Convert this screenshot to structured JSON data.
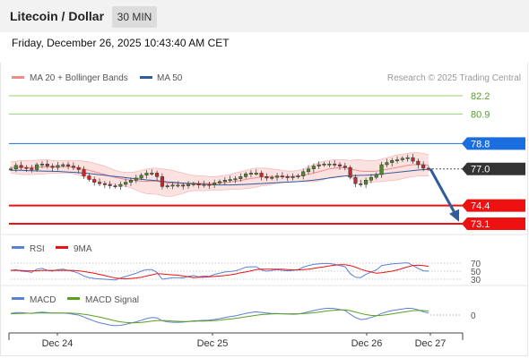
{
  "header": {
    "title": "Litecoin / Dollar",
    "timeframe": "30 MIN"
  },
  "datetime": "Friday, December 26, 2025 10:43:40 AM CET",
  "colors": {
    "bollinger": "#f28b8b",
    "ma50": "#2f5d9a",
    "resistance_green": "#9acd73",
    "pivot_blue": "#1a6ee0",
    "support_red": "#e11",
    "current": "#333333",
    "rsi": "#5b7fd6",
    "rsi_ma": "#e11",
    "macd": "#5b7fd6",
    "macd_signal": "#5aa01d",
    "arrow": "#2f5d9a"
  },
  "chart_data": [
    {
      "type": "line",
      "panel": "price",
      "legend": [
        "MA 20 + Bollinger Bands",
        "MA 50"
      ],
      "watermark": "Research © 2025 Trading Central",
      "ylim": [
        72.6,
        82.9
      ],
      "levels": [
        {
          "value": 82.2,
          "label": "82.2",
          "kind": "resistance"
        },
        {
          "value": 80.9,
          "label": "80.9",
          "kind": "resistance"
        },
        {
          "value": 78.8,
          "label": "78.8",
          "kind": "pivot"
        },
        {
          "value": 77.0,
          "label": "77.0",
          "kind": "current"
        },
        {
          "value": 74.4,
          "label": "74.4",
          "kind": "support"
        },
        {
          "value": 73.1,
          "label": "73.1",
          "kind": "support"
        }
      ],
      "x_ticks": [
        "Dec 24",
        "Dec 25",
        "Dec 26",
        "Dec 27"
      ],
      "close": [
        77.0,
        77.25,
        77.1,
        77.05,
        76.95,
        77.3,
        77.35,
        77.2,
        77.1,
        77.25,
        77.3,
        77.2,
        77.1,
        76.95,
        76.5,
        76.25,
        76.05,
        75.95,
        75.9,
        75.8,
        75.75,
        75.9,
        76.05,
        76.2,
        76.35,
        76.55,
        76.7,
        76.7,
        76.45,
        75.75,
        75.8,
        75.85,
        75.85,
        75.8,
        75.9,
        75.95,
        75.85,
        75.9,
        75.85,
        76.0,
        76.1,
        76.2,
        76.25,
        76.3,
        76.45,
        76.65,
        76.7,
        76.7,
        76.45,
        76.35,
        76.4,
        76.5,
        76.45,
        76.4,
        76.45,
        76.5,
        76.8,
        77.0,
        77.2,
        77.3,
        77.35,
        77.35,
        77.3,
        77.2,
        77.1,
        76.4,
        75.95,
        75.9,
        76.2,
        76.4,
        76.6,
        77.3,
        77.45,
        77.6,
        77.65,
        77.75,
        77.8,
        77.55,
        77.3,
        77.05,
        77.0
      ],
      "mid": [
        77.1,
        77.1,
        77.1,
        77.1,
        77.1,
        77.12,
        77.14,
        77.15,
        77.15,
        77.15,
        77.16,
        77.15,
        77.13,
        77.08,
        77.0,
        76.9,
        76.8,
        76.7,
        76.6,
        76.5,
        76.4,
        76.32,
        76.25,
        76.2,
        76.15,
        76.12,
        76.12,
        76.13,
        76.12,
        76.05,
        76.0,
        75.98,
        75.98,
        75.98,
        76.0,
        76.0,
        75.98,
        75.97,
        75.97,
        75.98,
        76.0,
        76.03,
        76.07,
        76.12,
        76.18,
        76.25,
        76.32,
        76.38,
        76.42,
        76.44,
        76.45,
        76.46,
        76.46,
        76.46,
        76.47,
        76.5,
        76.55,
        76.62,
        76.7,
        76.8,
        76.9,
        77.0,
        77.05,
        77.08,
        77.08,
        77.0,
        76.92,
        76.85,
        76.82,
        76.82,
        76.84,
        76.9,
        76.97,
        77.04,
        77.11,
        77.18,
        77.25,
        77.3,
        77.32,
        77.3,
        77.25
      ],
      "upper": [
        77.5,
        77.55,
        77.6,
        77.6,
        77.6,
        77.62,
        77.65,
        77.65,
        77.6,
        77.6,
        77.6,
        77.6,
        77.6,
        77.6,
        77.55,
        77.5,
        77.4,
        77.3,
        77.2,
        77.05,
        76.9,
        76.8,
        76.75,
        76.75,
        76.8,
        76.9,
        77.0,
        77.05,
        77.05,
        77.0,
        76.95,
        76.9,
        76.8,
        76.7,
        76.6,
        76.55,
        76.5,
        76.5,
        76.45,
        76.45,
        76.5,
        76.55,
        76.6,
        76.7,
        76.8,
        76.9,
        77.0,
        77.05,
        77.05,
        77.05,
        77.0,
        76.95,
        76.9,
        76.85,
        76.85,
        76.9,
        77.0,
        77.15,
        77.3,
        77.45,
        77.55,
        77.6,
        77.65,
        77.65,
        77.65,
        77.6,
        77.65,
        77.65,
        77.6,
        77.6,
        77.6,
        77.7,
        77.8,
        77.9,
        78.0,
        78.05,
        78.1,
        78.15,
        78.15,
        78.1,
        78.0
      ],
      "lower": [
        76.7,
        76.65,
        76.6,
        76.6,
        76.6,
        76.62,
        76.63,
        76.65,
        76.7,
        76.7,
        76.72,
        76.7,
        76.66,
        76.56,
        76.45,
        76.3,
        76.2,
        76.1,
        76.0,
        75.95,
        75.9,
        75.84,
        75.75,
        75.65,
        75.5,
        75.34,
        75.24,
        75.21,
        75.19,
        75.1,
        75.05,
        75.06,
        75.16,
        75.26,
        75.4,
        75.45,
        75.46,
        75.44,
        75.49,
        75.51,
        75.5,
        75.51,
        75.54,
        75.54,
        75.56,
        75.6,
        75.64,
        75.71,
        75.79,
        75.83,
        75.9,
        75.97,
        76.02,
        76.07,
        76.09,
        76.1,
        76.1,
        76.09,
        76.1,
        76.15,
        76.25,
        76.4,
        76.45,
        76.51,
        76.51,
        76.4,
        76.19,
        76.05,
        76.04,
        76.04,
        76.08,
        76.1,
        76.14,
        76.18,
        76.22,
        76.31,
        76.4,
        76.45,
        76.49,
        76.5,
        76.5
      ],
      "ma50": [
        76.9,
        76.9,
        76.9,
        76.88,
        76.87,
        76.86,
        76.85,
        76.84,
        76.83,
        76.82,
        76.8,
        76.78,
        76.76,
        76.73,
        76.7,
        76.67,
        76.63,
        76.59,
        76.55,
        76.5,
        76.46,
        76.42,
        76.38,
        76.34,
        76.3,
        76.26,
        76.22,
        76.19,
        76.16,
        76.12,
        76.08,
        76.05,
        76.02,
        75.99,
        75.96,
        75.94,
        75.92,
        75.9,
        75.88,
        75.87,
        75.86,
        75.86,
        75.86,
        75.87,
        75.88,
        75.9,
        75.92,
        75.94,
        75.96,
        75.98,
        76.0,
        76.02,
        76.04,
        76.06,
        76.08,
        76.1,
        76.13,
        76.16,
        76.2,
        76.25,
        76.3,
        76.35,
        76.4,
        76.45,
        76.5,
        76.52,
        76.53,
        76.54,
        76.55,
        76.57,
        76.6,
        76.64,
        76.68,
        76.72,
        76.76,
        76.8,
        76.84,
        76.88,
        76.92,
        76.95,
        76.97
      ]
    },
    {
      "type": "line",
      "panel": "rsi",
      "legend": [
        "RSI",
        "9MA"
      ],
      "levels": [
        "70",
        "50",
        "30"
      ],
      "ylim": [
        20,
        80
      ],
      "rsi": [
        52,
        54,
        50,
        49,
        47,
        55,
        57,
        52,
        50,
        54,
        55,
        52,
        49,
        45,
        38,
        34,
        32,
        31,
        30,
        29,
        28,
        33,
        37,
        41,
        45,
        50,
        54,
        54,
        47,
        30,
        32,
        34,
        34,
        33,
        37,
        39,
        36,
        38,
        37,
        42,
        45,
        48,
        49,
        51,
        55,
        60,
        61,
        61,
        53,
        50,
        52,
        54,
        52,
        51,
        52,
        54,
        60,
        64,
        67,
        68,
        69,
        69,
        67,
        64,
        61,
        44,
        35,
        34,
        42,
        48,
        53,
        64,
        66,
        68,
        69,
        70,
        71,
        64,
        57,
        51,
        50
      ],
      "ma": [
        52,
        52,
        52,
        51,
        51,
        51,
        52,
        52,
        52,
        52,
        52,
        52,
        52,
        51,
        49,
        47,
        45,
        42,
        39,
        36,
        33,
        32,
        31,
        32,
        33,
        35,
        38,
        41,
        44,
        43,
        42,
        41,
        40,
        38,
        36,
        34,
        35,
        35,
        36,
        37,
        38,
        39,
        41,
        43,
        46,
        48,
        51,
        54,
        55,
        55,
        55,
        55,
        55,
        54,
        53,
        53,
        54,
        55,
        57,
        59,
        61,
        63,
        65,
        66,
        66,
        64,
        60,
        55,
        51,
        48,
        45,
        46,
        48,
        50,
        53,
        57,
        61,
        64,
        65,
        64,
        62
      ]
    },
    {
      "type": "line",
      "panel": "macd",
      "legend": [
        "MACD",
        "MACD Signal"
      ],
      "levels": [
        "0"
      ],
      "ylim": [
        -1,
        1
      ],
      "macd": [
        0.1,
        0.15,
        0.15,
        0.12,
        0.1,
        0.15,
        0.18,
        0.15,
        0.12,
        0.12,
        0.13,
        0.1,
        0.05,
        0.0,
        -0.12,
        -0.25,
        -0.38,
        -0.48,
        -0.55,
        -0.62,
        -0.66,
        -0.64,
        -0.58,
        -0.5,
        -0.42,
        -0.32,
        -0.22,
        -0.15,
        -0.18,
        -0.35,
        -0.42,
        -0.45,
        -0.45,
        -0.44,
        -0.4,
        -0.36,
        -0.35,
        -0.33,
        -0.32,
        -0.28,
        -0.22,
        -0.16,
        -0.1,
        -0.05,
        0.02,
        0.1,
        0.16,
        0.2,
        0.16,
        0.12,
        0.1,
        0.1,
        0.08,
        0.06,
        0.05,
        0.06,
        0.12,
        0.2,
        0.28,
        0.35,
        0.4,
        0.42,
        0.4,
        0.35,
        0.28,
        0.05,
        -0.15,
        -0.28,
        -0.25,
        -0.15,
        -0.05,
        0.1,
        0.2,
        0.28,
        0.33,
        0.38,
        0.42,
        0.4,
        0.32,
        0.2,
        0.12
      ],
      "signal": [
        0.08,
        0.09,
        0.1,
        0.11,
        0.11,
        0.12,
        0.13,
        0.13,
        0.13,
        0.13,
        0.13,
        0.12,
        0.11,
        0.09,
        0.05,
        0.0,
        -0.06,
        -0.13,
        -0.2,
        -0.28,
        -0.36,
        -0.42,
        -0.46,
        -0.48,
        -0.48,
        -0.46,
        -0.42,
        -0.38,
        -0.34,
        -0.34,
        -0.35,
        -0.37,
        -0.39,
        -0.4,
        -0.4,
        -0.39,
        -0.38,
        -0.37,
        -0.36,
        -0.34,
        -0.32,
        -0.28,
        -0.25,
        -0.21,
        -0.16,
        -0.11,
        -0.06,
        -0.01,
        0.03,
        0.05,
        0.07,
        0.08,
        0.08,
        0.08,
        0.08,
        0.08,
        0.09,
        0.11,
        0.14,
        0.18,
        0.23,
        0.27,
        0.3,
        0.32,
        0.32,
        0.27,
        0.19,
        0.1,
        0.03,
        -0.02,
        -0.04,
        -0.02,
        0.02,
        0.07,
        0.12,
        0.17,
        0.22,
        0.27,
        0.29,
        0.28,
        0.25
      ]
    }
  ]
}
